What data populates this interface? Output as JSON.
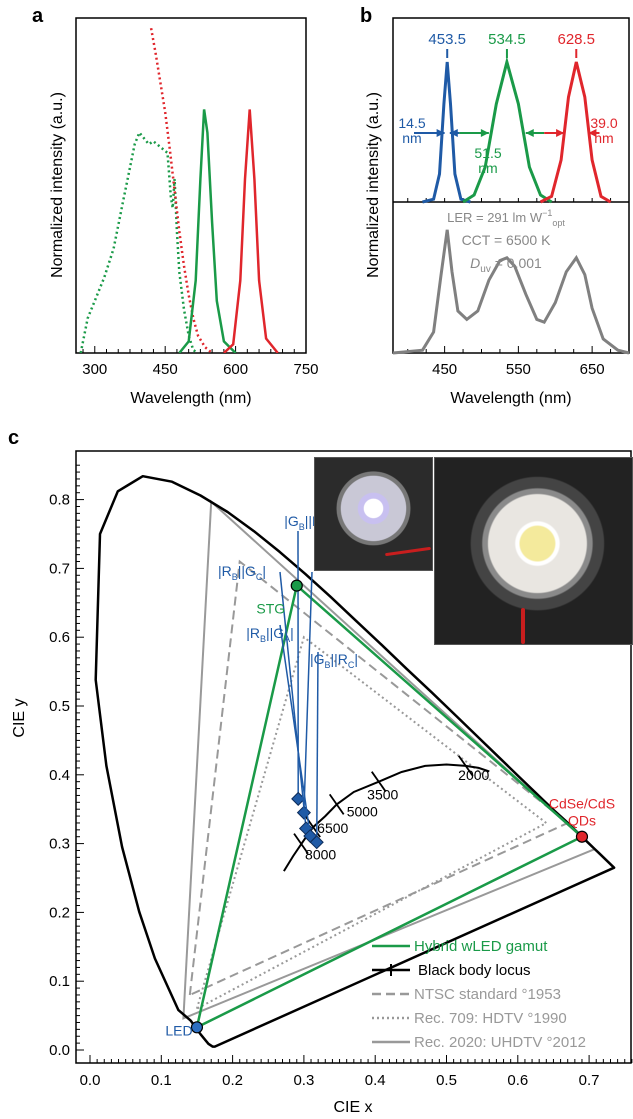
{
  "panels": {
    "a": {
      "label": "a",
      "ylabel": "Normalized intensity (a.u.)",
      "xlabel": "Wavelength (nm)",
      "xticks": [
        "300",
        "450",
        "600",
        "750"
      ]
    },
    "b": {
      "label": "b",
      "ylabel": "Normalized intensity (a.u.)",
      "xlabel": "Wavelength (nm)",
      "xticks": [
        "450",
        "550",
        "650"
      ],
      "peaks": [
        {
          "value": "453.5",
          "color": "#1f5aa6"
        },
        {
          "value": "534.5",
          "color": "#1a9a48"
        },
        {
          "value": "628.5",
          "color": "#e0262c"
        }
      ],
      "fwhm": [
        {
          "value": "14.5",
          "unit": "nm",
          "color": "#1f5aa6"
        },
        {
          "value": "51.5",
          "unit": "nm",
          "color": "#1a9a48"
        },
        {
          "value": "39.0",
          "unit": "nm",
          "color": "#e0262c"
        }
      ],
      "ler_text": "LER = 291 lm W",
      "ler_sup": "−1",
      "ler_sub": "opt",
      "cct_text": "CCT = 6500 K",
      "duv_symbol": "D",
      "duv_sub": "uv",
      "duv_value": " = 0.001"
    },
    "c": {
      "label": "c",
      "xlabel": "CIE x",
      "ylabel": "CIE y",
      "xticks": [
        "0.0",
        "0.1",
        "0.2",
        "0.3",
        "0.4",
        "0.5",
        "0.6",
        "0.7"
      ],
      "yticks": [
        "0.0",
        "0.1",
        "0.2",
        "0.3",
        "0.4",
        "0.5",
        "0.6",
        "0.7",
        "0.8"
      ],
      "point_labels": {
        "stg": "STG",
        "qd_line1": "CdSe/CdS",
        "qd_line2": "QDs",
        "led": "LED"
      },
      "cct_labels": [
        "2000",
        "3500",
        "5000",
        "6500",
        "8000"
      ],
      "legend": [
        {
          "label": "Hybrid wLED gamut",
          "color": "#1a9a48",
          "style": "solid"
        },
        {
          "label": "Black body locus",
          "color": "#000000",
          "style": "solid"
        },
        {
          "label": "NTSC standard °1953",
          "color": "#999999",
          "style": "dashed"
        },
        {
          "label": "Rec. 709: HDTV °1990",
          "color": "#999999",
          "style": "dotted"
        },
        {
          "label": "Rec. 2020: UHDTV °2012",
          "color": "#999999",
          "style": "solid"
        }
      ]
    }
  },
  "chart_data": [
    {
      "type": "line",
      "panel": "a",
      "xlim": [
        260,
        750
      ],
      "series": [
        {
          "color": "#1a9a48",
          "style": "dotted",
          "points": [
            [
              270,
              0.0
            ],
            [
              285,
              0.12
            ],
            [
              300,
              0.18
            ],
            [
              320,
              0.26
            ],
            [
              340,
              0.36
            ],
            [
              360,
              0.52
            ],
            [
              375,
              0.64
            ],
            [
              385,
              0.72
            ],
            [
              395,
              0.76
            ],
            [
              405,
              0.74
            ],
            [
              415,
              0.72
            ],
            [
              425,
              0.73
            ],
            [
              440,
              0.71
            ],
            [
              455,
              0.69
            ],
            [
              462,
              0.54
            ],
            [
              466,
              0.5
            ],
            [
              470,
              0.6
            ],
            [
              475,
              0.42
            ],
            [
              480,
              0.28
            ],
            [
              490,
              0.15
            ],
            [
              500,
              0.06
            ],
            [
              510,
              0.01
            ],
            [
              520,
              0.0
            ]
          ]
        },
        {
          "color": "#e0262c",
          "style": "dotted",
          "points": [
            [
              420,
              1.12
            ],
            [
              430,
              1.03
            ],
            [
              440,
              0.93
            ],
            [
              450,
              0.83
            ],
            [
              460,
              0.7
            ],
            [
              470,
              0.56
            ],
            [
              480,
              0.42
            ],
            [
              490,
              0.3
            ],
            [
              500,
              0.2
            ],
            [
              510,
              0.12
            ],
            [
              520,
              0.06
            ],
            [
              535,
              0.02
            ],
            [
              550,
              0.0
            ]
          ]
        },
        {
          "color": "#1a9a48",
          "style": "solid",
          "points": [
            [
              480,
              0.0
            ],
            [
              500,
              0.04
            ],
            [
              515,
              0.25
            ],
            [
              525,
              0.6
            ],
            [
              533,
              0.84
            ],
            [
              540,
              0.76
            ],
            [
              550,
              0.45
            ],
            [
              560,
              0.18
            ],
            [
              575,
              0.04
            ],
            [
              600,
              0.0
            ]
          ]
        },
        {
          "color": "#e0262c",
          "style": "solid",
          "points": [
            [
              575,
              0.0
            ],
            [
              595,
              0.03
            ],
            [
              610,
              0.25
            ],
            [
              620,
              0.6
            ],
            [
              630,
              0.84
            ],
            [
              640,
              0.6
            ],
            [
              650,
              0.25
            ],
            [
              665,
              0.05
            ],
            [
              690,
              0.0
            ]
          ]
        }
      ]
    },
    {
      "type": "line",
      "panel": "b-top",
      "xlim": [
        380,
        700
      ],
      "series": [
        {
          "color": "#1f5aa6",
          "points": [
            [
              420,
              0.0
            ],
            [
              435,
              0.02
            ],
            [
              443,
              0.2
            ],
            [
              449,
              0.7
            ],
            [
              453.5,
              1.0
            ],
            [
              458,
              0.7
            ],
            [
              464,
              0.2
            ],
            [
              472,
              0.02
            ],
            [
              485,
              0.0
            ]
          ]
        },
        {
          "color": "#1a9a48",
          "points": [
            [
              475,
              0.0
            ],
            [
              490,
              0.05
            ],
            [
              505,
              0.25
            ],
            [
              520,
              0.7
            ],
            [
              534.5,
              1.0
            ],
            [
              550,
              0.7
            ],
            [
              565,
              0.25
            ],
            [
              580,
              0.05
            ],
            [
              595,
              0.0
            ]
          ]
        },
        {
          "color": "#e0262c",
          "points": [
            [
              580,
              0.0
            ],
            [
              595,
              0.04
            ],
            [
              608,
              0.3
            ],
            [
              618,
              0.75
            ],
            [
              628.5,
              1.0
            ],
            [
              640,
              0.75
            ],
            [
              650,
              0.3
            ],
            [
              662,
              0.04
            ],
            [
              675,
              0.0
            ]
          ]
        }
      ]
    },
    {
      "type": "line",
      "panel": "b-bottom",
      "xlim": [
        380,
        700
      ],
      "series": [
        {
          "color": "#808080",
          "points": [
            [
              380,
              0.0
            ],
            [
              420,
              0.02
            ],
            [
              435,
              0.15
            ],
            [
              445,
              0.55
            ],
            [
              453.5,
              0.88
            ],
            [
              460,
              0.58
            ],
            [
              468,
              0.3
            ],
            [
              480,
              0.24
            ],
            [
              495,
              0.3
            ],
            [
              510,
              0.52
            ],
            [
              525,
              0.66
            ],
            [
              534.5,
              0.68
            ],
            [
              545,
              0.62
            ],
            [
              560,
              0.42
            ],
            [
              575,
              0.24
            ],
            [
              585,
              0.22
            ],
            [
              600,
              0.36
            ],
            [
              615,
              0.58
            ],
            [
              628.5,
              0.68
            ],
            [
              640,
              0.56
            ],
            [
              650,
              0.32
            ],
            [
              665,
              0.1
            ],
            [
              685,
              0.02
            ],
            [
              700,
              0.0
            ]
          ]
        }
      ]
    },
    {
      "type": "scatter",
      "panel": "c",
      "xlim": [
        -0.02,
        0.77
      ],
      "ylim": [
        -0.02,
        0.86
      ],
      "spectral_locus": [
        [
          0.175,
          0.005
        ],
        [
          0.172,
          0.005
        ],
        [
          0.166,
          0.009
        ],
        [
          0.155,
          0.023
        ],
        [
          0.141,
          0.043
        ],
        [
          0.124,
          0.058
        ],
        [
          0.091,
          0.133
        ],
        [
          0.069,
          0.201
        ],
        [
          0.045,
          0.295
        ],
        [
          0.023,
          0.413
        ],
        [
          0.008,
          0.538
        ],
        [
          0.014,
          0.75
        ],
        [
          0.039,
          0.812
        ],
        [
          0.074,
          0.834
        ],
        [
          0.115,
          0.826
        ],
        [
          0.155,
          0.806
        ],
        [
          0.193,
          0.782
        ],
        [
          0.23,
          0.754
        ],
        [
          0.266,
          0.724
        ],
        [
          0.302,
          0.692
        ],
        [
          0.337,
          0.659
        ],
        [
          0.373,
          0.624
        ],
        [
          0.409,
          0.589
        ],
        [
          0.444,
          0.554
        ],
        [
          0.479,
          0.52
        ],
        [
          0.512,
          0.487
        ],
        [
          0.545,
          0.454
        ],
        [
          0.575,
          0.424
        ],
        [
          0.603,
          0.396
        ],
        [
          0.627,
          0.372
        ],
        [
          0.648,
          0.351
        ],
        [
          0.666,
          0.334
        ],
        [
          0.68,
          0.32
        ],
        [
          0.692,
          0.308
        ],
        [
          0.701,
          0.299
        ],
        [
          0.708,
          0.292
        ],
        [
          0.714,
          0.286
        ],
        [
          0.735,
          0.265
        ]
      ],
      "gamuts": [
        {
          "name": "Hybrid wLED gamut",
          "color": "#1a9a48",
          "points": [
            [
              0.15,
              0.033
            ],
            [
              0.29,
              0.675
            ],
            [
              0.69,
              0.31
            ]
          ]
        },
        {
          "name": "NTSC standard °1953",
          "color": "#999999",
          "style": "dashed",
          "points": [
            [
              0.14,
              0.08
            ],
            [
              0.21,
              0.71
            ],
            [
              0.67,
              0.33
            ]
          ]
        },
        {
          "name": "Rec. 709: HDTV °1990",
          "color": "#999999",
          "style": "dotted",
          "points": [
            [
              0.15,
              0.06
            ],
            [
              0.3,
              0.6
            ],
            [
              0.64,
              0.33
            ]
          ]
        },
        {
          "name": "Rec. 2020: UHDTV °2012",
          "color": "#999999",
          "style": "solid",
          "points": [
            [
              0.131,
              0.046
            ],
            [
              0.17,
              0.797
            ],
            [
              0.708,
              0.292
            ]
          ]
        }
      ],
      "blackbody_locus": [
        [
          0.272,
          0.26
        ],
        [
          0.285,
          0.282
        ],
        [
          0.3,
          0.305
        ],
        [
          0.313,
          0.324
        ],
        [
          0.33,
          0.34
        ],
        [
          0.346,
          0.357
        ],
        [
          0.37,
          0.375
        ],
        [
          0.405,
          0.39
        ],
        [
          0.437,
          0.404
        ],
        [
          0.47,
          0.413
        ],
        [
          0.5,
          0.415
        ],
        [
          0.527,
          0.413
        ],
        [
          0.545,
          0.41
        ],
        [
          0.56,
          0.405
        ]
      ],
      "cct_ticks": [
        {
          "label": "2000",
          "x": 0.527,
          "y": 0.413
        },
        {
          "label": "3500",
          "x": 0.405,
          "y": 0.39
        },
        {
          "label": "5000",
          "x": 0.346,
          "y": 0.357
        },
        {
          "label": "6500",
          "x": 0.313,
          "y": 0.324
        },
        {
          "label": "8000",
          "x": 0.296,
          "y": 0.3
        }
      ],
      "primaries": [
        {
          "label": "STG",
          "x": 0.29,
          "y": 0.675,
          "color": "#1a9a48"
        },
        {
          "label": "CdSe/CdS QDs",
          "x": 0.69,
          "y": 0.31,
          "color": "#e0262c"
        },
        {
          "label": "LED",
          "x": 0.15,
          "y": 0.033,
          "color": "#2c6fc2"
        }
      ],
      "white_points": [
        {
          "label": "|GB||RA|",
          "x": 0.292,
          "y": 0.365
        },
        {
          "label": "|RAGA|",
          "x": 0.3,
          "y": 0.345
        },
        {
          "label": "|RB||GC|",
          "x": 0.303,
          "y": 0.322
        },
        {
          "label": "|RB||GA|",
          "x": 0.309,
          "y": 0.311
        },
        {
          "label": "|GB||RC|",
          "x": 0.318,
          "y": 0.302
        }
      ]
    }
  ]
}
